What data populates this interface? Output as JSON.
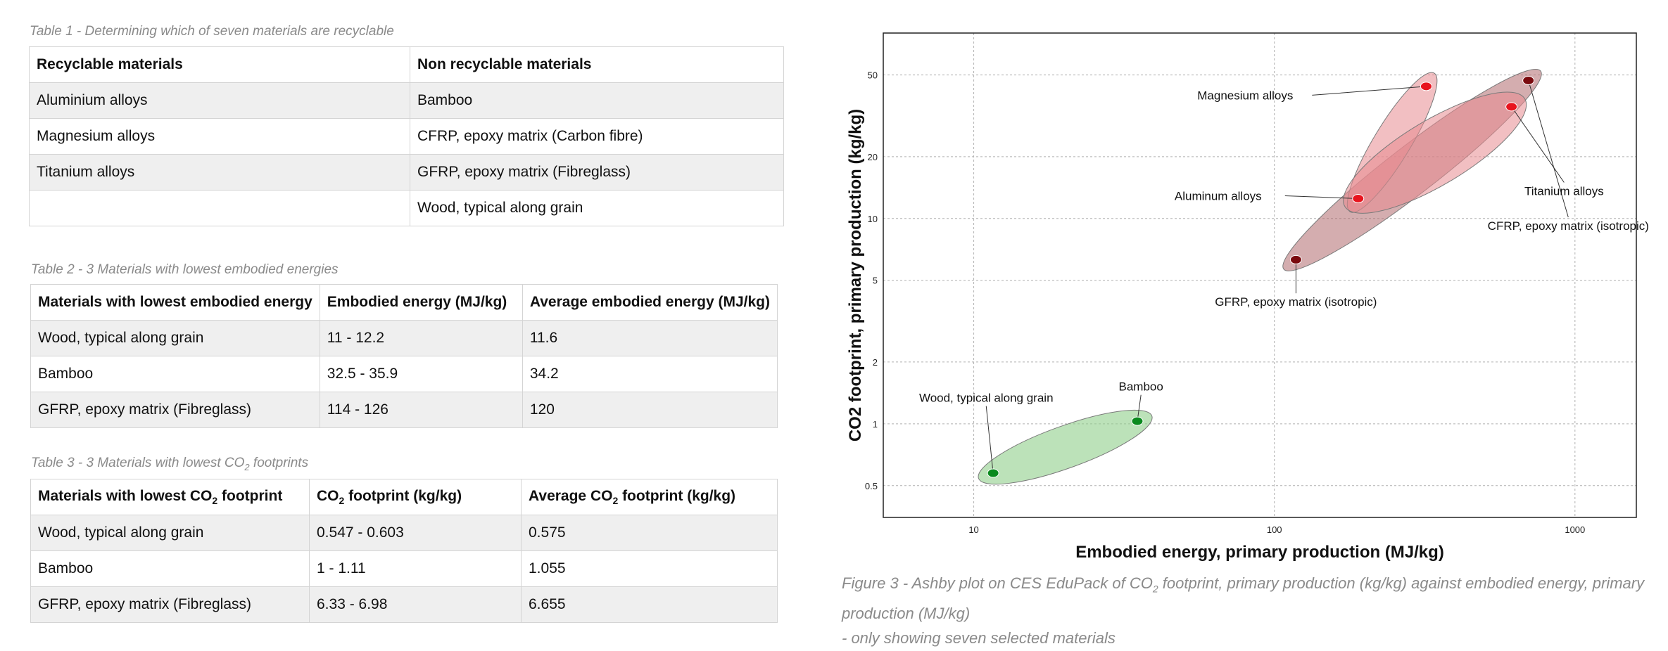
{
  "table1": {
    "caption": "Table 1 - Determining which of seven materials are recyclable",
    "headers": [
      "Recyclable materials",
      "Non recyclable materials"
    ],
    "rows": [
      [
        "Aluminium alloys",
        "Bamboo"
      ],
      [
        "Magnesium alloys",
        "CFRP, epoxy matrix (Carbon fibre)"
      ],
      [
        "Titanium alloys",
        "GFRP, epoxy matrix (Fibreglass)"
      ],
      [
        "",
        "Wood, typical along grain"
      ]
    ]
  },
  "table2": {
    "caption": "Table 2 - 3 Materials with lowest embodied energies",
    "headers": [
      "Materials with lowest embodied energy",
      "Embodied energy (MJ/kg)",
      "Average embodied energy (MJ/kg)"
    ],
    "rows": [
      [
        "Wood, typical along grain",
        "11 - 12.2",
        "11.6"
      ],
      [
        "Bamboo",
        "32.5 - 35.9",
        "34.2"
      ],
      [
        "GFRP, epoxy matrix (Fibreglass)",
        "114 - 126",
        "120"
      ]
    ]
  },
  "table3": {
    "caption_prefix": "Table 3 - 3 Materials with lowest CO",
    "caption_sub": "2",
    "caption_suffix": " footprints",
    "headers": [
      {
        "pre": "Materials with lowest CO",
        "sub": "2",
        "post": " footprint"
      },
      {
        "pre": "CO",
        "sub": "2",
        "post": " footprint (kg/kg)"
      },
      {
        "pre": "Average CO",
        "sub": "2",
        "post": " footprint (kg/kg)"
      }
    ],
    "rows": [
      [
        "Wood, typical along grain",
        "0.547 - 0.603",
        "0.575"
      ],
      [
        "Bamboo",
        "1 - 1.11",
        "1.055"
      ],
      [
        "GFRP, epoxy matrix (Fibreglass)",
        "6.33 - 6.98",
        "6.655"
      ]
    ]
  },
  "figure": {
    "caption_prefix": "Figure 3 - Ashby plot on CES EduPack of CO",
    "caption_sub": "2",
    "caption_suffix": " footprint, primary production (kg/kg) against embodied energy, primary production (MJ/kg)",
    "caption_line2": "- only showing seven selected materials"
  },
  "chart_data": {
    "type": "scatter",
    "xlabel": "Embodied energy, primary production (MJ/kg)",
    "ylabel": "CO2 footprint, primary production (kg/kg)",
    "xscale": "log",
    "yscale": "log",
    "xlim": [
      5,
      1600
    ],
    "ylim": [
      0.35,
      80
    ],
    "x_ticks": [
      10,
      100,
      1000
    ],
    "x_tick_labels": [
      "10",
      "100",
      "1000"
    ],
    "y_ticks": [
      0.5,
      1,
      2,
      5,
      10,
      20,
      50
    ],
    "y_tick_labels": [
      "0.5",
      "1",
      "2",
      "5",
      "10",
      "20",
      "50"
    ],
    "grid": true,
    "envelope_colors": {
      "metals": "#e88a8f",
      "composites": "#b06a6e",
      "natural": "#8fcf8a"
    },
    "point_colors": {
      "red": "#e8141e",
      "darkred": "#7a0a0e",
      "green": "#0a8a1e"
    },
    "points": [
      {
        "name": "Magnesium alloys",
        "x": 320,
        "y": 44,
        "color": "red"
      },
      {
        "name": "Aluminum alloys",
        "x": 190,
        "y": 12.5,
        "color": "red"
      },
      {
        "name": "Titanium alloys",
        "x": 615,
        "y": 35,
        "color": "red"
      },
      {
        "name": "CFRP, epoxy matrix (isotropic)",
        "x": 700,
        "y": 47,
        "color": "darkred"
      },
      {
        "name": "GFRP, epoxy matrix (isotropic)",
        "x": 118,
        "y": 6.3,
        "color": "darkred"
      },
      {
        "name": "Bamboo",
        "x": 35,
        "y": 1.03,
        "color": "green"
      },
      {
        "name": "Wood, typical along grain",
        "x": 11.6,
        "y": 0.575,
        "color": "green"
      }
    ],
    "labels": [
      {
        "text": "Magnesium alloys",
        "x": 80,
        "y": 38,
        "anchor": "middle",
        "point": 0
      },
      {
        "text": "Aluminum alloys",
        "x": 65,
        "y": 12.3,
        "anchor": "middle",
        "point": 1
      },
      {
        "text": "Titanium alloys",
        "x": 920,
        "y": 13,
        "anchor": "middle",
        "point": 2
      },
      {
        "text": "CFRP, epoxy matrix (isotropic)",
        "x": 950,
        "y": 8.8,
        "anchor": "middle",
        "point": 3
      },
      {
        "text": "GFRP, epoxy matrix (isotropic)",
        "x": 118,
        "y": 3.75,
        "anchor": "middle",
        "point": 4
      },
      {
        "text": "Bamboo",
        "x": 36,
        "y": 1.45,
        "anchor": "middle",
        "point": 5
      },
      {
        "text": "Wood, typical along grain",
        "x": 11,
        "y": 1.28,
        "anchor": "middle",
        "point": 6
      }
    ]
  }
}
